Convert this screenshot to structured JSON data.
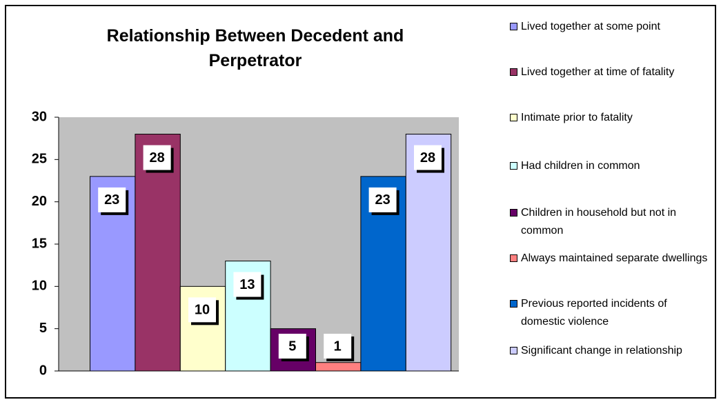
{
  "chart_data": {
    "type": "bar",
    "title": "Relationship Between Decedent and Perpetrator",
    "ylim": [
      0,
      30
    ],
    "yticks": [
      0,
      5,
      10,
      15,
      20,
      25,
      30
    ],
    "series": [
      {
        "name": "Lived together at some point",
        "color": "#9999ff",
        "values": [
          23
        ]
      },
      {
        "name": "Lived together at time of fatality",
        "color": "#993366",
        "values": [
          28
        ]
      },
      {
        "name": "Intimate prior to fatality",
        "color": "#ffffcc",
        "values": [
          10
        ]
      },
      {
        "name": "Had children in common",
        "color": "#ccffff",
        "values": [
          13
        ]
      },
      {
        "name": "Children in household but not in common",
        "color": "#660066",
        "values": [
          5
        ]
      },
      {
        "name": "Always maintained separate dwellings",
        "color": "#ff8080",
        "values": [
          1
        ]
      },
      {
        "name": "Previous reported incidents of domestic violence",
        "color": "#0066cc",
        "values": [
          23
        ]
      },
      {
        "name": "Significant change in relationship",
        "color": "#ccccff",
        "values": [
          28
        ]
      }
    ]
  }
}
